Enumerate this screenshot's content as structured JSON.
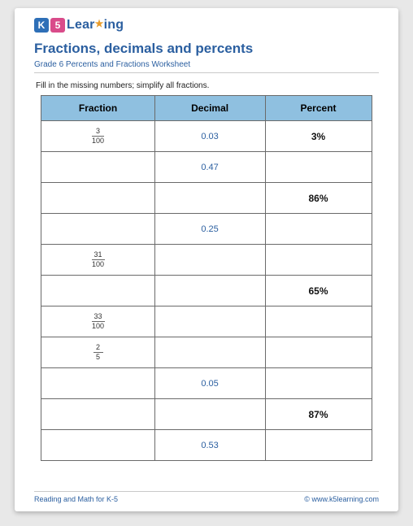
{
  "brand": {
    "k": "K",
    "five": "5",
    "text_left": "Lear",
    "text_right": "ing"
  },
  "title": "Fractions, decimals and percents",
  "subtitle": "Grade 6 Percents and Fractions Worksheet",
  "instruction": "Fill in the missing numbers; simplify all fractions.",
  "table": {
    "headers": {
      "fraction": "Fraction",
      "decimal": "Decimal",
      "percent": "Percent"
    },
    "rows": [
      {
        "fraction_num": "3",
        "fraction_den": "100",
        "decimal": "0.03",
        "percent": "3%"
      },
      {
        "fraction_num": "",
        "fraction_den": "",
        "decimal": "0.47",
        "percent": ""
      },
      {
        "fraction_num": "",
        "fraction_den": "",
        "decimal": "",
        "percent": "86%"
      },
      {
        "fraction_num": "",
        "fraction_den": "",
        "decimal": "0.25",
        "percent": ""
      },
      {
        "fraction_num": "31",
        "fraction_den": "100",
        "decimal": "",
        "percent": ""
      },
      {
        "fraction_num": "",
        "fraction_den": "",
        "decimal": "",
        "percent": "65%"
      },
      {
        "fraction_num": "33",
        "fraction_den": "100",
        "decimal": "",
        "percent": ""
      },
      {
        "fraction_num": "2",
        "fraction_den": "5",
        "decimal": "",
        "percent": ""
      },
      {
        "fraction_num": "",
        "fraction_den": "",
        "decimal": "0.05",
        "percent": ""
      },
      {
        "fraction_num": "",
        "fraction_den": "",
        "decimal": "",
        "percent": "87%"
      },
      {
        "fraction_num": "",
        "fraction_den": "",
        "decimal": "0.53",
        "percent": ""
      }
    ]
  },
  "footer": {
    "left": "Reading and Math for K-5",
    "copyright": "©",
    "link": "www.k5learning.com"
  },
  "colors": {
    "header_bg": "#8fc0e0",
    "title_color": "#2b5fa0",
    "border_color": "#6a6a6a",
    "page_bg": "#ffffff",
    "body_bg": "#e8e8e8"
  }
}
